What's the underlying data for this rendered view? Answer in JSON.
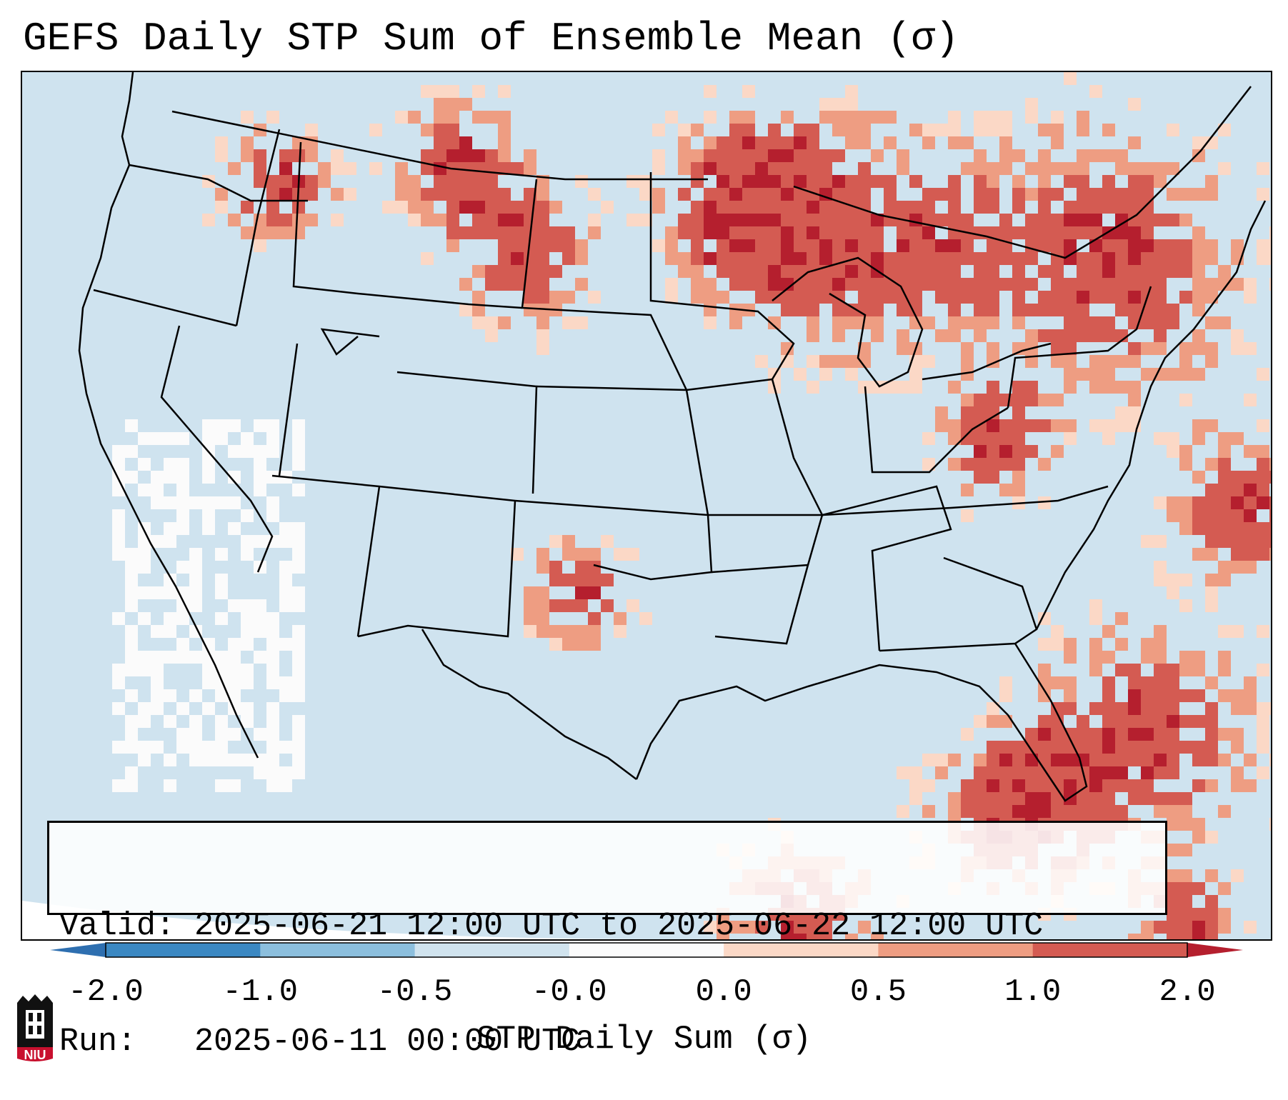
{
  "title": "GEFS Daily STP Sum of Ensemble Mean (σ)",
  "info": {
    "valid_line": "Valid: 2025-06-21 12:00 UTC to 2025-06-22 12:00 UTC",
    "run_line": "Run:   2025-06-11 00:00 UTC"
  },
  "colorbar": {
    "label": "STP Daily Sum (σ)",
    "ticks": [
      "-2.0",
      "-1.0",
      "-0.5",
      "-0.0",
      "0.0",
      "0.5",
      "1.0",
      "2.0"
    ],
    "bins": [
      {
        "color": "#3b88c2"
      },
      {
        "color": "#8cbfdd"
      },
      {
        "color": "#d0e3ee"
      },
      {
        "color": "#fbfbfb"
      },
      {
        "color": "#fbd8c6"
      },
      {
        "color": "#ee9d82"
      },
      {
        "color": "#d45b52"
      }
    ],
    "under_color": "#2e6fb0",
    "over_color": "#b51f2e"
  },
  "logo": {
    "text": "NIU"
  }
}
